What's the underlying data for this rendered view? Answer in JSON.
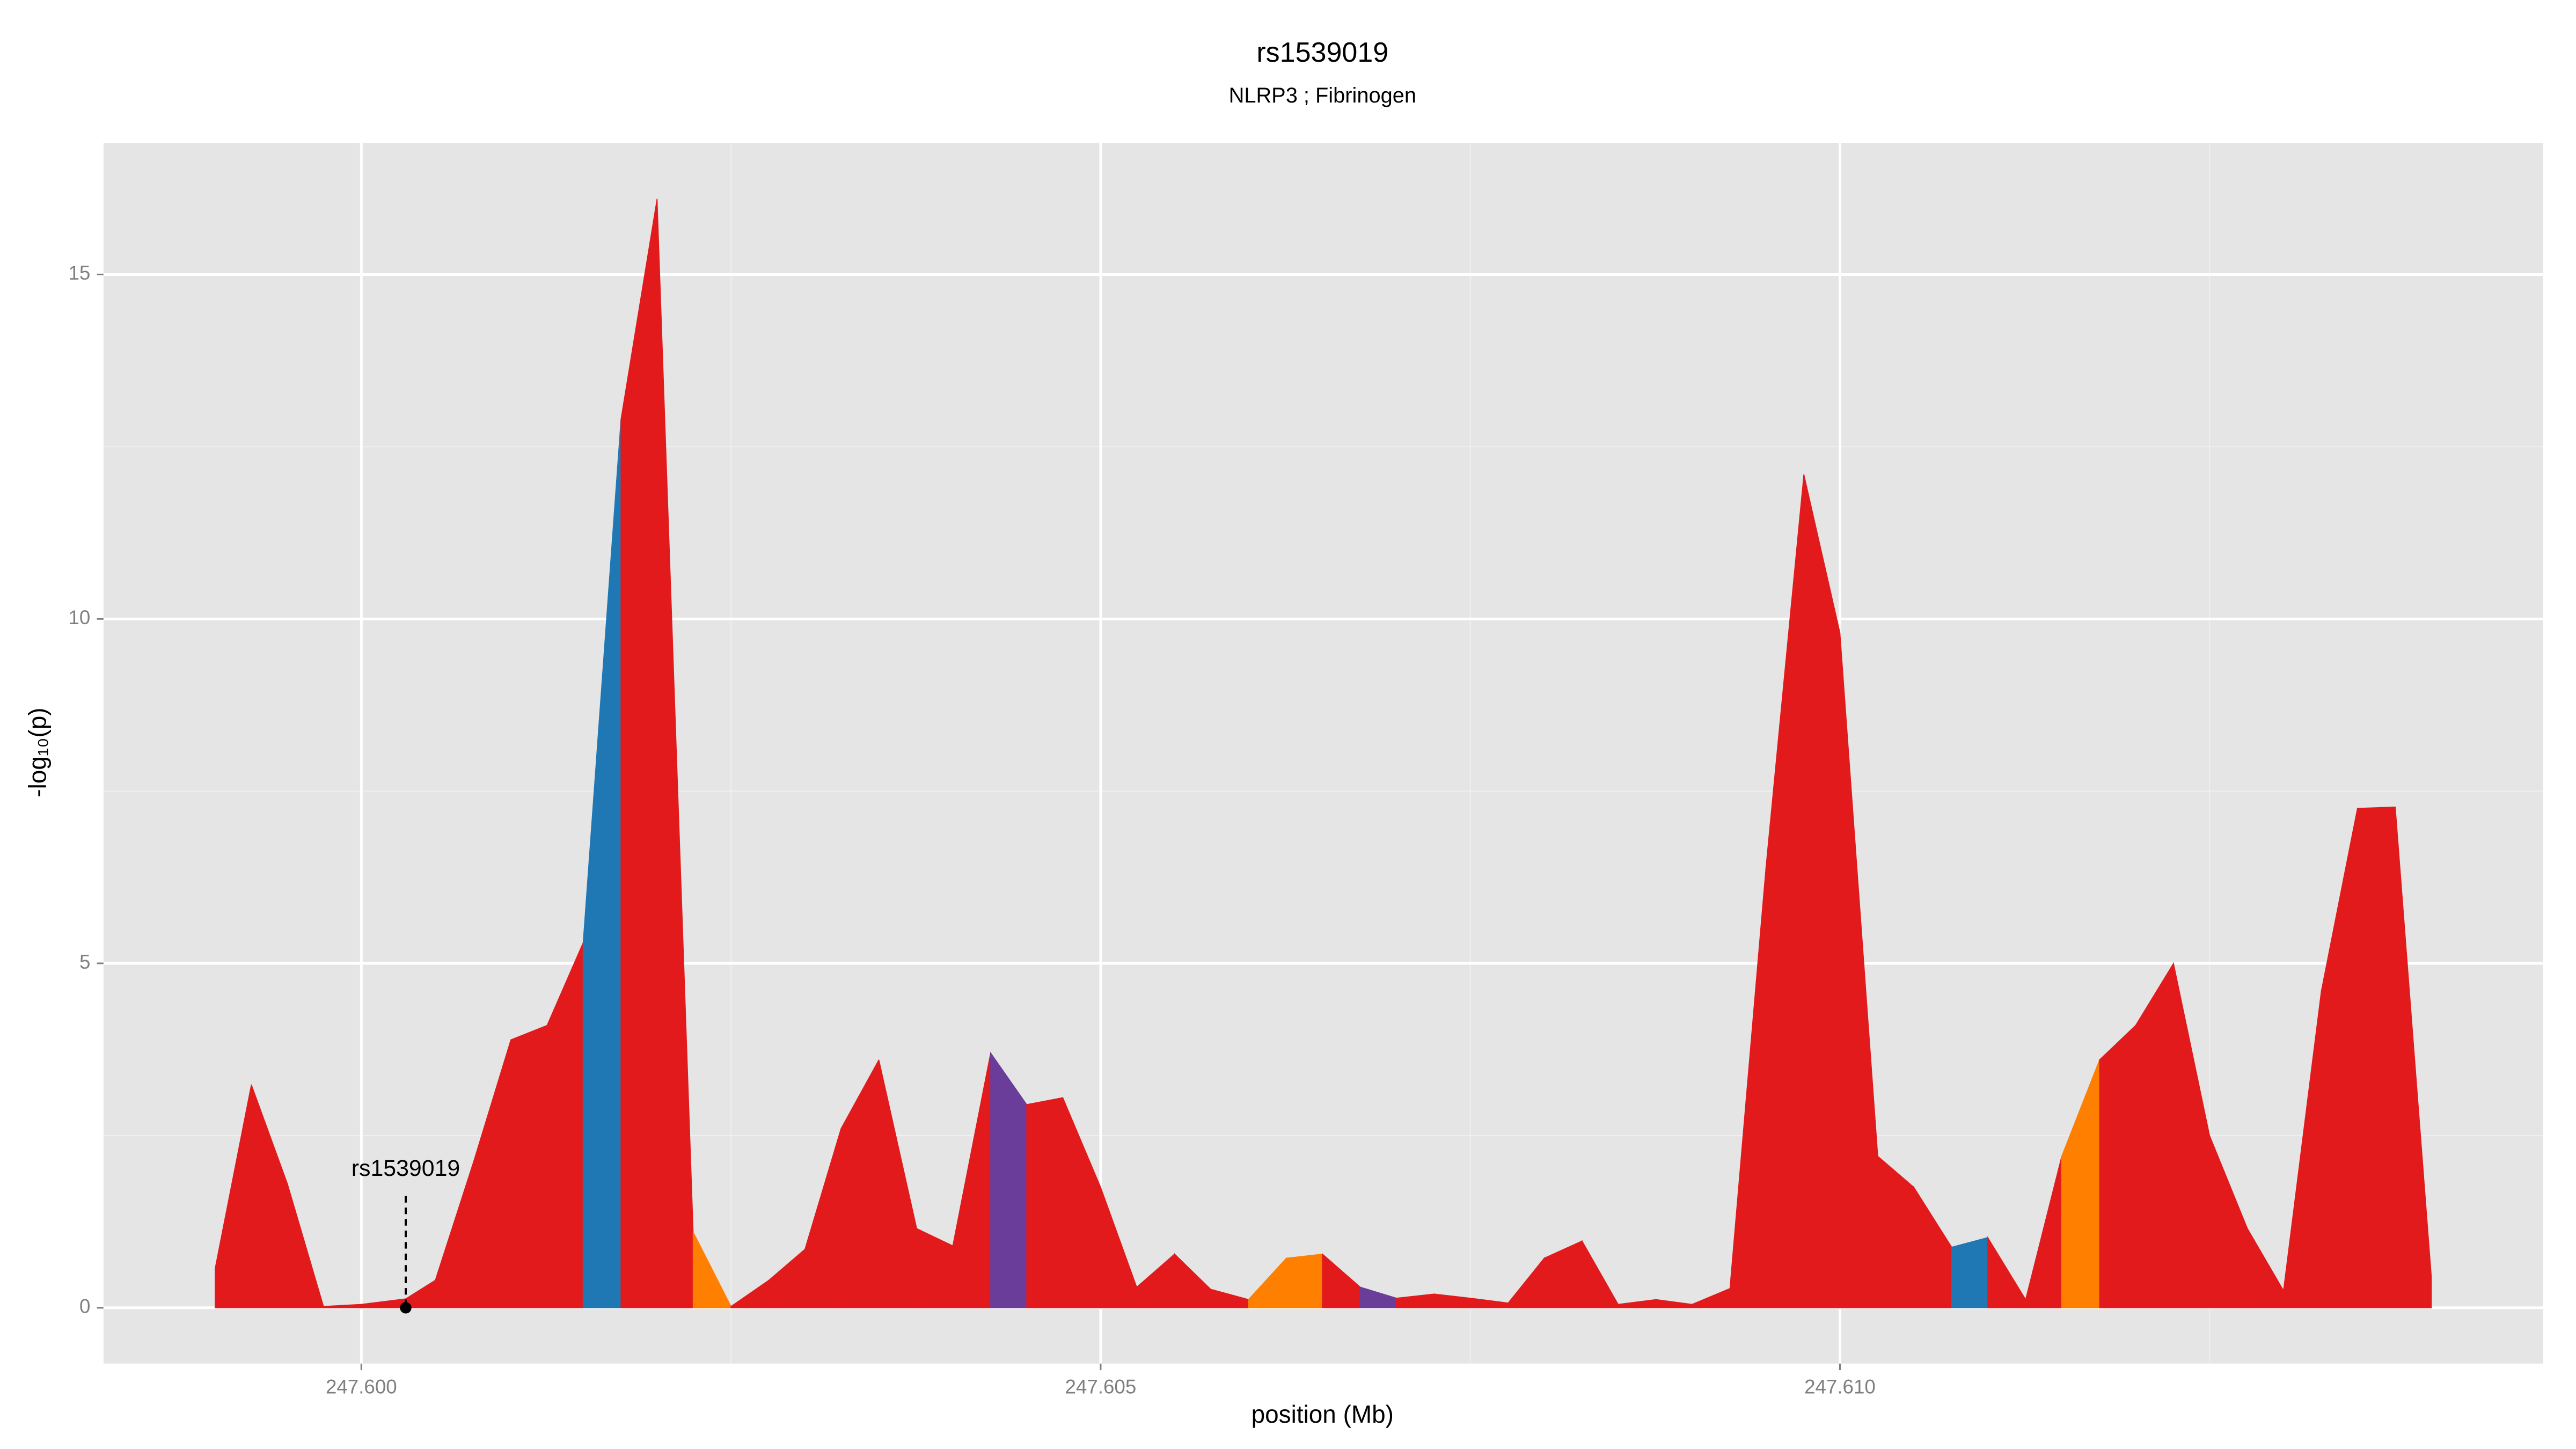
{
  "chart_data": {
    "type": "area",
    "title": "rs1539019",
    "subtitle": "NLRP3 ; Fibrinogen",
    "x_label": "position (Mb)",
    "y_label": "-log₁₀(p)",
    "x": [
      247.599011,
      247.599256,
      247.5995,
      247.599744,
      247.6,
      247.6003,
      247.6005,
      247.600756,
      247.601011,
      247.601256,
      247.6015,
      247.601756,
      247.602,
      247.602244,
      247.6025,
      247.602756,
      247.603,
      247.603244,
      247.6035,
      247.603756,
      247.604,
      247.604256,
      247.6045,
      247.604744,
      247.605,
      247.605244,
      247.6055,
      247.605744,
      247.606,
      247.606256,
      247.6065,
      247.606756,
      247.607,
      247.607256,
      247.6075,
      247.607756,
      247.608,
      247.608256,
      247.6085,
      247.608756,
      247.609,
      247.609256,
      247.6095,
      247.609756,
      247.61,
      247.610256,
      247.6105,
      247.610756,
      247.611,
      247.611256,
      247.6115,
      247.611756,
      247.612,
      247.612256,
      247.6125,
      247.612756,
      247.613,
      247.613256,
      247.6135,
      247.613756,
      247.614
    ],
    "values": [
      0.57,
      3.24,
      1.8,
      0.02,
      0.05,
      0.13,
      0.4,
      2.1,
      3.89,
      4.1,
      5.3,
      12.9,
      16.1,
      1.1,
      0.02,
      0.4,
      0.85,
      2.6,
      3.6,
      1.15,
      0.9,
      3.7,
      2.95,
      3.05,
      1.75,
      0.3,
      0.78,
      0.27,
      0.12,
      0.72,
      0.78,
      0.3,
      0.14,
      0.2,
      0.14,
      0.07,
      0.72,
      0.97,
      0.05,
      0.12,
      0.05,
      0.28,
      6.4,
      12.1,
      9.8,
      2.2,
      1.75,
      0.88,
      1.02,
      0.12,
      2.2,
      3.6,
      4.1,
      5.0,
      2.5,
      1.15,
      0.25,
      4.6,
      7.25,
      7.27,
      0.45
    ],
    "colors": [
      "#e31a1c",
      "#e31a1c",
      "#e31a1c",
      "#e31a1c",
      "#e31a1c",
      "#e31a1c",
      "#e31a1c",
      "#e31a1c",
      "#e31a1c",
      "#e31a1c",
      "#1f78b4",
      "#e31a1c",
      "#e31a1c",
      "#ff7f00",
      "#e31a1c",
      "#e31a1c",
      "#e31a1c",
      "#e31a1c",
      "#e31a1c",
      "#e31a1c",
      "#e31a1c",
      "#6a3d9a",
      "#e31a1c",
      "#e31a1c",
      "#e31a1c",
      "#e31a1c",
      "#e31a1c",
      "#e31a1c",
      "#ff7f00",
      "#ff7f00",
      "#e31a1c",
      "#6a3d9a",
      "#e31a1c",
      "#e31a1c",
      "#e31a1c",
      "#e31a1c",
      "#e31a1c",
      "#e31a1c",
      "#e31a1c",
      "#e31a1c",
      "#e31a1c",
      "#e31a1c",
      "#e31a1c",
      "#e31a1c",
      "#e31a1c",
      "#e31a1c",
      "#e31a1c",
      "#1f78b4",
      "#e31a1c",
      "#e31a1c",
      "#ff7f00",
      "#e31a1c",
      "#e31a1c",
      "#e31a1c",
      "#e31a1c",
      "#e31a1c",
      "#e31a1c",
      "#e31a1c",
      "#e31a1c",
      "#e31a1c",
      "#e31a1c"
    ],
    "annotation": {
      "text": "rs1539019",
      "x": 247.6003,
      "y": 0
    },
    "xlim": [
      247.598256,
      247.614756
    ],
    "ylim": [
      -0.81,
      16.91
    ],
    "xticks": [
      {
        "value": 247.6,
        "label": "247.600"
      },
      {
        "value": 247.605,
        "label": "247.605"
      },
      {
        "value": 247.61,
        "label": "247.610"
      }
    ],
    "yticks": [
      0,
      5,
      10,
      15
    ],
    "grid": true
  }
}
